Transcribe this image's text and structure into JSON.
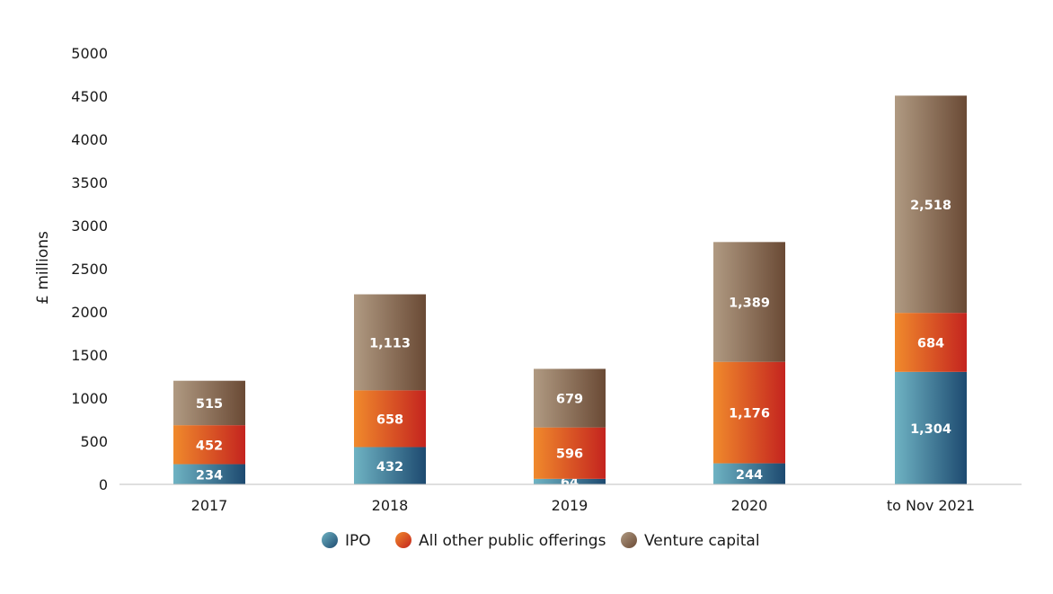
{
  "chart_data": {
    "type": "bar",
    "stacked": true,
    "categories": [
      "2017",
      "2018",
      "2019",
      "2020",
      "to Nov 2021"
    ],
    "series": [
      {
        "name": "IPO",
        "values": [
          234,
          432,
          64,
          244,
          1304
        ],
        "labels": [
          "234",
          "432",
          "64",
          "244",
          "1,304"
        ],
        "color_light": "#6fb3c3",
        "color_dark": "#1d4a70"
      },
      {
        "name": "All other public offerings",
        "values": [
          452,
          658,
          596,
          1176,
          684
        ],
        "labels": [
          "452",
          "658",
          "596",
          "1,176",
          "684"
        ],
        "color_light": "#f08a2c",
        "color_dark": "#c4241f"
      },
      {
        "name": "Venture capital",
        "values": [
          515,
          1113,
          679,
          1389,
          2518
        ],
        "labels": [
          "515",
          "1,113",
          "679",
          "1,389",
          "2,518"
        ],
        "color_light": "#b09a82",
        "color_dark": "#6a4a35"
      }
    ],
    "ylabel": "£ millions",
    "xlabel": "",
    "ylim": [
      0,
      5000
    ],
    "yticks": [
      0,
      500,
      1000,
      1500,
      2000,
      2500,
      3000,
      3500,
      4000,
      4500,
      5000
    ],
    "grid": false,
    "legend_position": "bottom"
  }
}
